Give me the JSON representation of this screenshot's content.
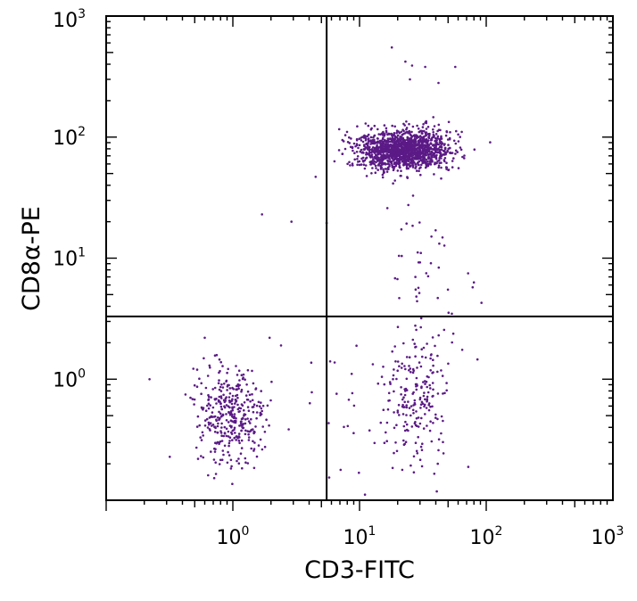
{
  "chart_data": {
    "type": "scatter",
    "title": "",
    "xlabel": "CD3-FITC",
    "ylabel_parts": [
      "CD8",
      "α",
      "-PE"
    ],
    "x_scale": "log",
    "y_scale": "log",
    "xlim": [
      0.1,
      1000
    ],
    "ylim": [
      0.1,
      1000
    ],
    "x_ticks": [
      {
        "value": 1,
        "base": "10",
        "exp": "0"
      },
      {
        "value": 10,
        "base": "10",
        "exp": "1"
      },
      {
        "value": 100,
        "base": "10",
        "exp": "2"
      },
      {
        "value": 1000,
        "base": "10",
        "exp": "3"
      }
    ],
    "y_ticks": [
      {
        "value": 1,
        "base": "10",
        "exp": "0"
      },
      {
        "value": 10,
        "base": "10",
        "exp": "1"
      },
      {
        "value": 100,
        "base": "10",
        "exp": "2"
      },
      {
        "value": 1000,
        "base": "10",
        "exp": "3"
      }
    ],
    "quadrant_gate": {
      "x": 5.5,
      "y": 3.3
    },
    "point_color": "#5b1a86",
    "populations": [
      {
        "center": [
          22,
          78
        ],
        "spread_log": [
          0.18,
          0.08
        ],
        "count": 1500
      },
      {
        "center": [
          0.95,
          0.5
        ],
        "spread_log": [
          0.14,
          0.2
        ],
        "count": 380
      },
      {
        "center": [
          30,
          0.7
        ],
        "spread_log": [
          0.12,
          0.25
        ],
        "count": 170
      },
      {
        "center": [
          18,
          0.5
        ],
        "spread_log": [
          0.28,
          0.3
        ],
        "count": 60
      },
      {
        "center": [
          35,
          6
        ],
        "spread_log": [
          0.15,
          0.4
        ],
        "count": 55
      }
    ],
    "points": [
      [
        18,
        550
      ],
      [
        33,
        380
      ],
      [
        57,
        380
      ],
      [
        26,
        390
      ],
      [
        25,
        300
      ],
      [
        1.7,
        23
      ],
      [
        2.9,
        20
      ],
      [
        5.5,
        19.5
      ],
      [
        4.2,
        0.78
      ],
      [
        2.4,
        1.9
      ],
      [
        0.22,
        1.0
      ],
      [
        0.6,
        2.2
      ],
      [
        1.95,
        2.2
      ],
      [
        80,
        6.3
      ],
      [
        72,
        7.5
      ],
      [
        14,
        0.92
      ],
      [
        23,
        420
      ],
      [
        42,
        280
      ],
      [
        11,
        55
      ],
      [
        4.5,
        47
      ]
    ]
  }
}
